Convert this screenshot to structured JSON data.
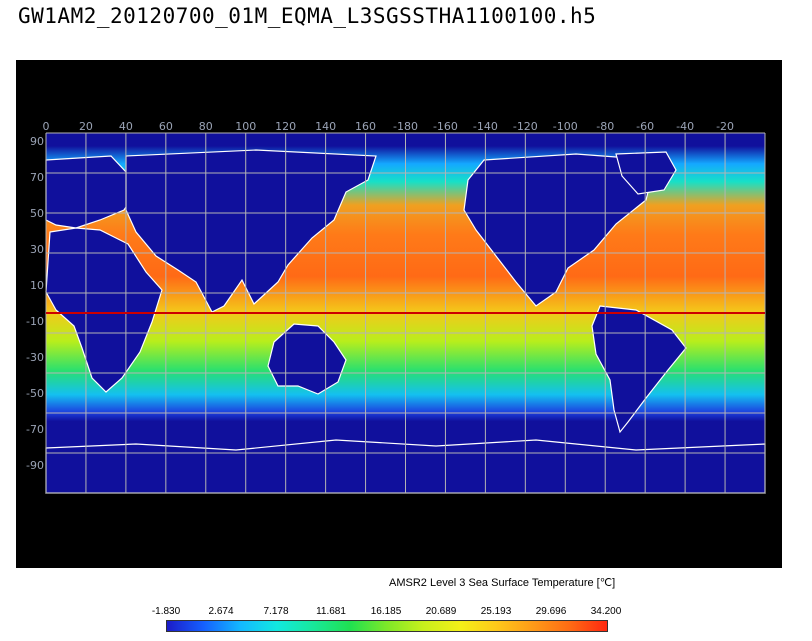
{
  "title": "GW1AM2_20120700_01M_EQMA_L3SGSSTHA1100100.h5",
  "map": {
    "lon_ticks": [
      "0",
      "20",
      "40",
      "60",
      "80",
      "100",
      "120",
      "140",
      "160",
      "-180",
      "-160",
      "-140",
      "-120",
      "-100",
      "-80",
      "-60",
      "-40",
      "-20"
    ],
    "lat_ticks": [
      "90",
      "70",
      "50",
      "30",
      "10",
      "-10",
      "-30",
      "-50",
      "-70",
      "-90"
    ],
    "equator_line_color": "#cc0000",
    "land_color": "#ffffff",
    "ocean_background_color": "#10109c",
    "grid_color": "#b4b4b4"
  },
  "caption": "AMSR2 Level 3 Sea Surface Temperature [℃]",
  "colorbar": {
    "ticks": [
      "-1.830",
      "2.674",
      "7.178",
      "11.681",
      "16.185",
      "20.689",
      "25.193",
      "29.696",
      "34.200"
    ],
    "colors": [
      "#1c1cc8",
      "#1560ff",
      "#14b8ff",
      "#12e8e0",
      "#18e89a",
      "#20e050",
      "#7ee828",
      "#c8f01c",
      "#f4f018",
      "#ffc81a",
      "#ff9a18",
      "#ff6a14",
      "#ff2810"
    ]
  }
}
